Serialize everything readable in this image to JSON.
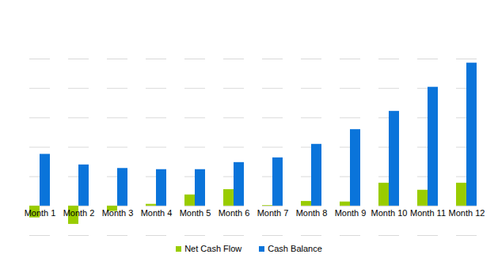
{
  "chart_data": {
    "type": "bar",
    "categories": [
      "Month 1",
      "Month 2",
      "Month 3",
      "Month 4",
      "Month 5",
      "Month 6",
      "Month 7",
      "Month 8",
      "Month 9",
      "Month 10",
      "Month 11",
      "Month 12"
    ],
    "series": [
      {
        "name": "Net Cash Flow",
        "color": "#99cc00",
        "values": [
          -20,
          -31,
          -9,
          3,
          19,
          28,
          1,
          8,
          7,
          39,
          27,
          39
        ]
      },
      {
        "name": "Cash Balance",
        "color": "#0a74da",
        "values": [
          88,
          70,
          64,
          62,
          62,
          74,
          82,
          105,
          130,
          161,
          202,
          243
        ]
      }
    ],
    "ylim": [
      -50,
      250
    ],
    "yticks": [
      -50,
      0,
      50,
      100,
      150,
      200,
      250
    ],
    "grid": true,
    "legend": "bottom",
    "tick_labels": "x",
    "data_labels": false
  }
}
